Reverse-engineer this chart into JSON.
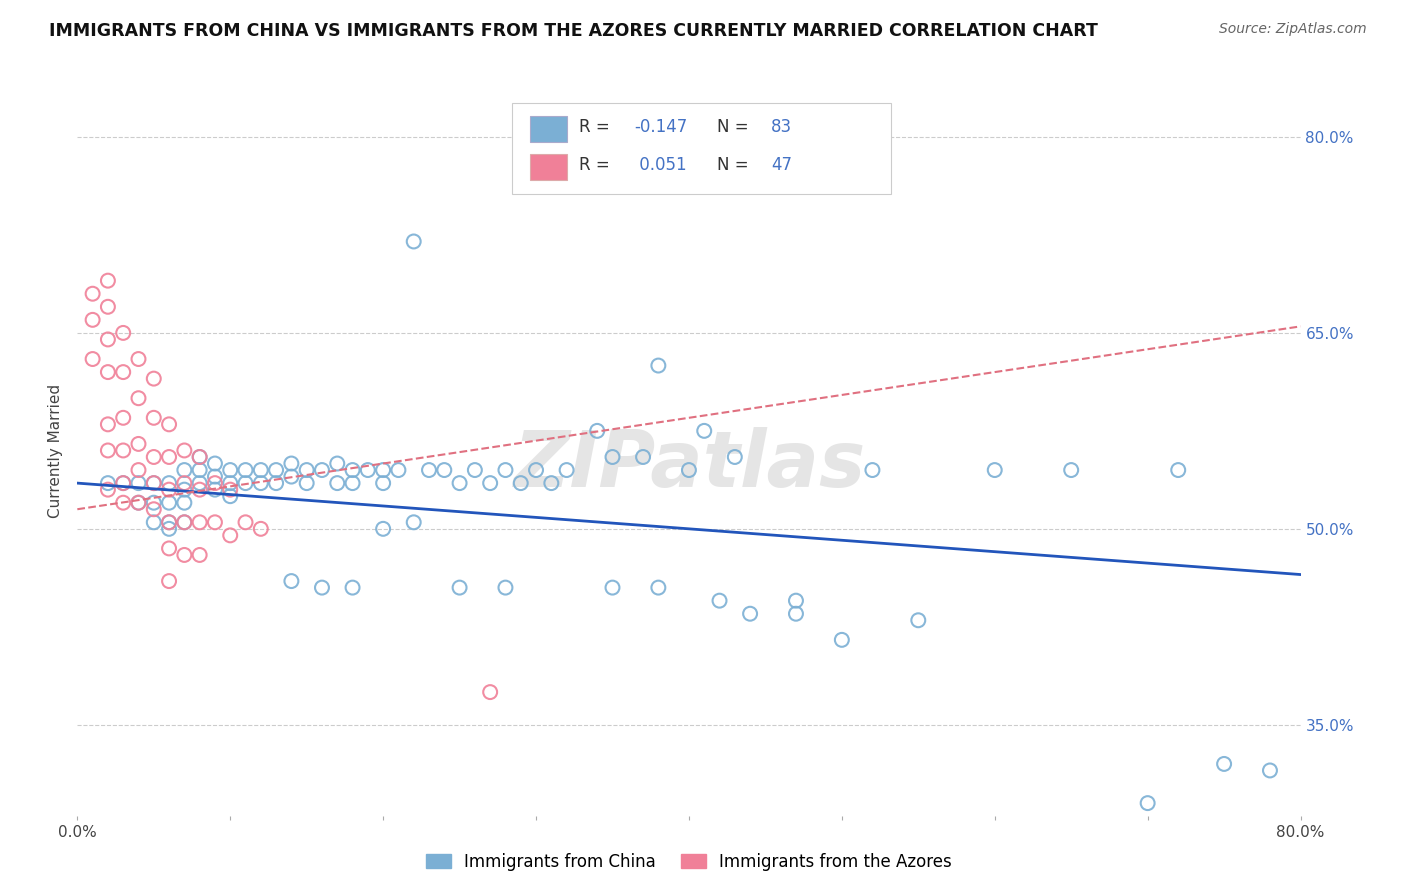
{
  "title": "IMMIGRANTS FROM CHINA VS IMMIGRANTS FROM THE AZORES CURRENTLY MARRIED CORRELATION CHART",
  "source": "Source: ZipAtlas.com",
  "ylabel": "Currently Married",
  "xlim": [
    0.0,
    0.8
  ],
  "ylim": [
    0.28,
    0.84
  ],
  "y_tick_right_vals": [
    0.35,
    0.5,
    0.65,
    0.8
  ],
  "y_tick_right_labels": [
    "35.0%",
    "50.0%",
    "65.0%",
    "80.0%"
  ],
  "color_china": "#7bafd4",
  "color_azores": "#f08098",
  "color_china_line": "#2255bb",
  "color_azores_line": "#e07080",
  "legend_label1": "Immigrants from China",
  "legend_label2": "Immigrants from the Azores",
  "watermark": "ZIPatlas",
  "china_R": -0.147,
  "china_N": 83,
  "azores_R": 0.051,
  "azores_N": 47,
  "china_line_x0": 0.0,
  "china_line_y0": 0.535,
  "china_line_x1": 0.8,
  "china_line_y1": 0.465,
  "azores_line_x0": 0.0,
  "azores_line_y0": 0.515,
  "azores_line_x1": 0.8,
  "azores_line_y1": 0.655,
  "china_x": [
    0.02,
    0.03,
    0.04,
    0.04,
    0.05,
    0.05,
    0.05,
    0.06,
    0.06,
    0.06,
    0.06,
    0.07,
    0.07,
    0.07,
    0.07,
    0.08,
    0.08,
    0.08,
    0.09,
    0.09,
    0.09,
    0.1,
    0.1,
    0.1,
    0.11,
    0.11,
    0.12,
    0.12,
    0.13,
    0.13,
    0.14,
    0.14,
    0.15,
    0.15,
    0.16,
    0.17,
    0.17,
    0.18,
    0.18,
    0.19,
    0.2,
    0.2,
    0.21,
    0.22,
    0.23,
    0.24,
    0.25,
    0.26,
    0.27,
    0.28,
    0.29,
    0.3,
    0.31,
    0.32,
    0.34,
    0.35,
    0.37,
    0.38,
    0.4,
    0.41,
    0.43,
    0.44,
    0.47,
    0.5,
    0.52,
    0.55,
    0.6,
    0.65,
    0.7,
    0.72,
    0.75,
    0.78,
    0.2,
    0.22,
    0.14,
    0.16,
    0.18,
    0.25,
    0.28,
    0.35,
    0.38,
    0.42,
    0.47
  ],
  "china_y": [
    0.535,
    0.535,
    0.535,
    0.52,
    0.535,
    0.52,
    0.505,
    0.535,
    0.52,
    0.505,
    0.5,
    0.545,
    0.53,
    0.52,
    0.505,
    0.555,
    0.545,
    0.535,
    0.55,
    0.54,
    0.53,
    0.545,
    0.535,
    0.525,
    0.545,
    0.535,
    0.545,
    0.535,
    0.545,
    0.535,
    0.55,
    0.54,
    0.545,
    0.535,
    0.545,
    0.55,
    0.535,
    0.545,
    0.535,
    0.545,
    0.545,
    0.535,
    0.545,
    0.72,
    0.545,
    0.545,
    0.535,
    0.545,
    0.535,
    0.545,
    0.535,
    0.545,
    0.535,
    0.545,
    0.575,
    0.555,
    0.555,
    0.625,
    0.545,
    0.575,
    0.555,
    0.435,
    0.435,
    0.415,
    0.545,
    0.43,
    0.545,
    0.545,
    0.29,
    0.545,
    0.32,
    0.315,
    0.5,
    0.505,
    0.46,
    0.455,
    0.455,
    0.455,
    0.455,
    0.455,
    0.455,
    0.445,
    0.445
  ],
  "azores_x": [
    0.01,
    0.01,
    0.01,
    0.02,
    0.02,
    0.02,
    0.02,
    0.02,
    0.02,
    0.02,
    0.03,
    0.03,
    0.03,
    0.03,
    0.03,
    0.03,
    0.04,
    0.04,
    0.04,
    0.04,
    0.04,
    0.05,
    0.05,
    0.05,
    0.05,
    0.05,
    0.06,
    0.06,
    0.06,
    0.06,
    0.06,
    0.06,
    0.07,
    0.07,
    0.07,
    0.07,
    0.08,
    0.08,
    0.08,
    0.08,
    0.09,
    0.09,
    0.1,
    0.1,
    0.11,
    0.12,
    0.27
  ],
  "azores_y": [
    0.68,
    0.66,
    0.63,
    0.69,
    0.67,
    0.645,
    0.62,
    0.58,
    0.56,
    0.53,
    0.65,
    0.62,
    0.585,
    0.56,
    0.535,
    0.52,
    0.63,
    0.6,
    0.565,
    0.545,
    0.52,
    0.615,
    0.585,
    0.555,
    0.535,
    0.515,
    0.58,
    0.555,
    0.53,
    0.505,
    0.485,
    0.46,
    0.56,
    0.535,
    0.505,
    0.48,
    0.555,
    0.53,
    0.505,
    0.48,
    0.535,
    0.505,
    0.53,
    0.495,
    0.505,
    0.5,
    0.375
  ]
}
